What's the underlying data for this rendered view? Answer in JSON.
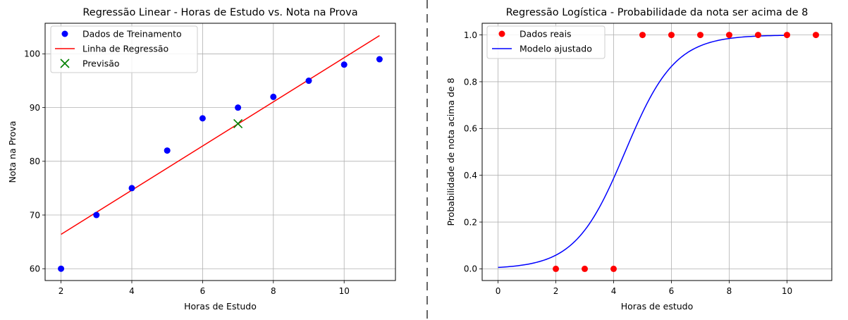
{
  "chart_data": [
    {
      "type": "scatter",
      "title": "Regressão Linear - Horas de Estudo vs. Nota na Prova",
      "xlabel": "Horas de Estudo",
      "ylabel": "Nota na Prova",
      "xlim": [
        1.55,
        11.45
      ],
      "ylim": [
        57.8,
        105.7
      ],
      "xticks": [
        2,
        4,
        6,
        8,
        10
      ],
      "yticks": [
        60,
        70,
        80,
        90,
        100
      ],
      "grid": true,
      "legend": "top-left",
      "series": [
        {
          "name": "Dados de Treinamento",
          "kind": "scatter",
          "color": "#0000ff",
          "x": [
            2,
            3,
            4,
            5,
            6,
            7,
            8,
            9,
            10,
            11
          ],
          "y": [
            60,
            70,
            75,
            82,
            88,
            90,
            92,
            95,
            98,
            99
          ]
        },
        {
          "name": "Linha de Regressão",
          "kind": "line",
          "color": "#ff0000",
          "x": [
            2,
            11
          ],
          "y": [
            66.4,
            103.4
          ]
        },
        {
          "name": "Previsão",
          "kind": "marker-x",
          "color": "#008000",
          "x": [
            7
          ],
          "y": [
            87
          ]
        }
      ]
    },
    {
      "type": "scatter",
      "title": "Regressão Logística - Probabilidade da nota ser acima de 8",
      "xlabel": "Horas de estudo",
      "ylabel": "Probabilidade de nota acima de 8",
      "xlim": [
        -0.55,
        11.55
      ],
      "ylim": [
        -0.05,
        1.05
      ],
      "xticks": [
        0,
        2,
        4,
        6,
        8,
        10
      ],
      "yticks": [
        0.0,
        0.2,
        0.4,
        0.6,
        0.8,
        1.0
      ],
      "ytick_labels": [
        "0.0",
        "0.2",
        "0.4",
        "0.6",
        "0.8",
        "1.0"
      ],
      "grid": true,
      "legend": "top-left",
      "series": [
        {
          "name": "Dados reais",
          "kind": "scatter",
          "color": "#ff0000",
          "x": [
            2,
            3,
            4,
            5,
            6,
            7,
            8,
            9,
            10,
            11
          ],
          "y": [
            0,
            0,
            0,
            1,
            1,
            1,
            1,
            1,
            1,
            1
          ]
        },
        {
          "name": "Modelo ajustado",
          "kind": "logistic",
          "color": "#0000ff",
          "x_range": [
            0,
            10
          ],
          "intercept": -5.1,
          "slope": 1.16
        }
      ]
    }
  ],
  "divider": {
    "style": "dashed",
    "color": "#000000"
  }
}
